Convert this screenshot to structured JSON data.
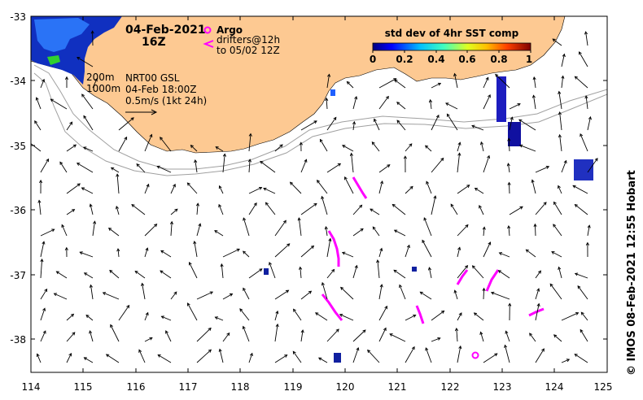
{
  "title": {
    "date": "04-Feb-2021",
    "time": "16Z"
  },
  "legend": {
    "argo_label": "Argo",
    "drifters_label": "drifters@12h",
    "drifters_range": "to 05/02 12Z",
    "isobath_200": "200m",
    "isobath_1000": "1000m",
    "current_source": "NRT00 GSL",
    "current_time": "04-Feb 18:00Z",
    "current_scale": "0.5m/s (1kt 24h)"
  },
  "colorbar": {
    "title": "std dev of 4hr SST comp",
    "ticks": [
      "0",
      "0.2",
      "0.4",
      "0.6",
      "0.8",
      "1"
    ],
    "colors": [
      "#00007f",
      "#0000ff",
      "#007fff",
      "#00ffff",
      "#7fff7f",
      "#ffff00",
      "#ff7f00",
      "#ff0000",
      "#7f0000"
    ]
  },
  "axes": {
    "x_ticks": [
      "114",
      "115",
      "116",
      "117",
      "118",
      "119",
      "120",
      "121",
      "122",
      "123",
      "124",
      "125"
    ],
    "y_ticks": [
      "-33",
      "-34",
      "-35",
      "-36",
      "-37",
      "-38"
    ],
    "lon_range": [
      114,
      125
    ],
    "lat_range": [
      -38.5,
      -33
    ]
  },
  "credit": "© IMOS 08-Feb-2021 12:55 Hobart",
  "colors": {
    "land": "#fdc992",
    "sea": "#ffffff",
    "drifter": "#ff00ff",
    "arrow": "#000000",
    "isobath": "#a0a0a0"
  }
}
